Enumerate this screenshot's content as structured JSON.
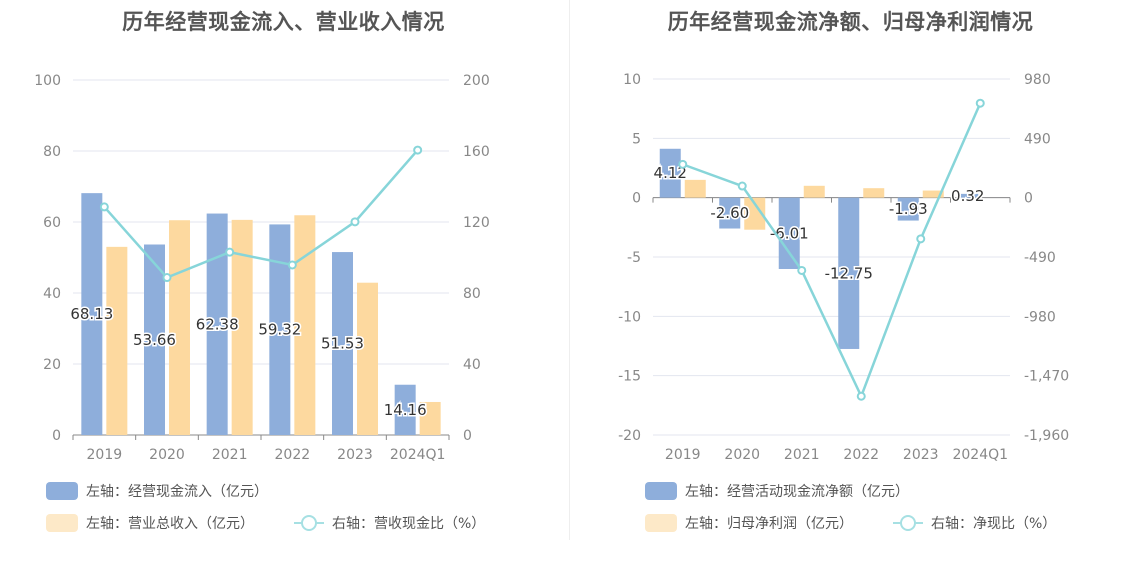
{
  "chart_data": [
    {
      "type": "bar",
      "title": "历年经营现金流入、营业收入情况",
      "categories": [
        "2019",
        "2020",
        "2021",
        "2022",
        "2023",
        "2024Q1"
      ],
      "left_axis": {
        "ticks": [
          "0",
          "20",
          "40",
          "60",
          "80",
          "100"
        ],
        "range": [
          0,
          100
        ]
      },
      "right_axis": {
        "ticks": [
          "0",
          "40",
          "80",
          "120",
          "160",
          "200"
        ],
        "range": [
          0,
          200
        ]
      },
      "series": [
        {
          "name": "左轴：经营现金流入（亿元）",
          "kind": "bar",
          "axis": "left",
          "color": "#8eaedb",
          "values": [
            68.13,
            53.66,
            62.38,
            59.32,
            51.53,
            14.16
          ],
          "labels": [
            "68.13",
            "53.66",
            "62.38",
            "59.32",
            "51.53",
            "14.16"
          ]
        },
        {
          "name": "左轴：营业总收入（亿元）",
          "kind": "bar",
          "axis": "left",
          "color": "#fdd99f",
          "values": [
            53.0,
            60.5,
            60.6,
            61.9,
            42.9,
            9.3
          ]
        },
        {
          "name": "右轴：营收现金比（%）",
          "kind": "line",
          "axis": "right",
          "color": "#87d5d9",
          "values": [
            128.5,
            88.7,
            103.0,
            95.8,
            120.1,
            160.5
          ]
        }
      ]
    },
    {
      "type": "bar",
      "title": "历年经营现金流净额、归母净利润情况",
      "categories": [
        "2019",
        "2020",
        "2021",
        "2022",
        "2023",
        "2024Q1"
      ],
      "left_axis": {
        "ticks": [
          "-20",
          "-15",
          "-10",
          "-5",
          "0",
          "5",
          "10"
        ],
        "range": [
          -20,
          10
        ]
      },
      "right_axis": {
        "ticks": [
          "-1,960",
          "-1,470",
          "-980",
          "-490",
          "0",
          "490",
          "980"
        ],
        "range": [
          -1960,
          980
        ]
      },
      "series": [
        {
          "name": "左轴：经营活动现金流净额（亿元）",
          "kind": "bar",
          "axis": "left",
          "color": "#8eaedb",
          "values": [
            4.12,
            -2.6,
            -6.01,
            -12.75,
            -1.93,
            0.32
          ],
          "labels": [
            "4.12",
            "-2.60",
            "-6.01",
            "-12.75",
            "-1.93",
            "0.32"
          ]
        },
        {
          "name": "左轴：归母净利润（亿元）",
          "kind": "bar",
          "axis": "left",
          "color": "#fdd99f",
          "values": [
            1.5,
            -2.7,
            1.0,
            0.8,
            0.6,
            0.0
          ]
        },
        {
          "name": "右轴：净现比（%）",
          "kind": "line",
          "axis": "right",
          "color": "#87d5d9",
          "values": [
            275,
            96,
            -601,
            -1640,
            -340,
            780
          ]
        }
      ]
    }
  ]
}
